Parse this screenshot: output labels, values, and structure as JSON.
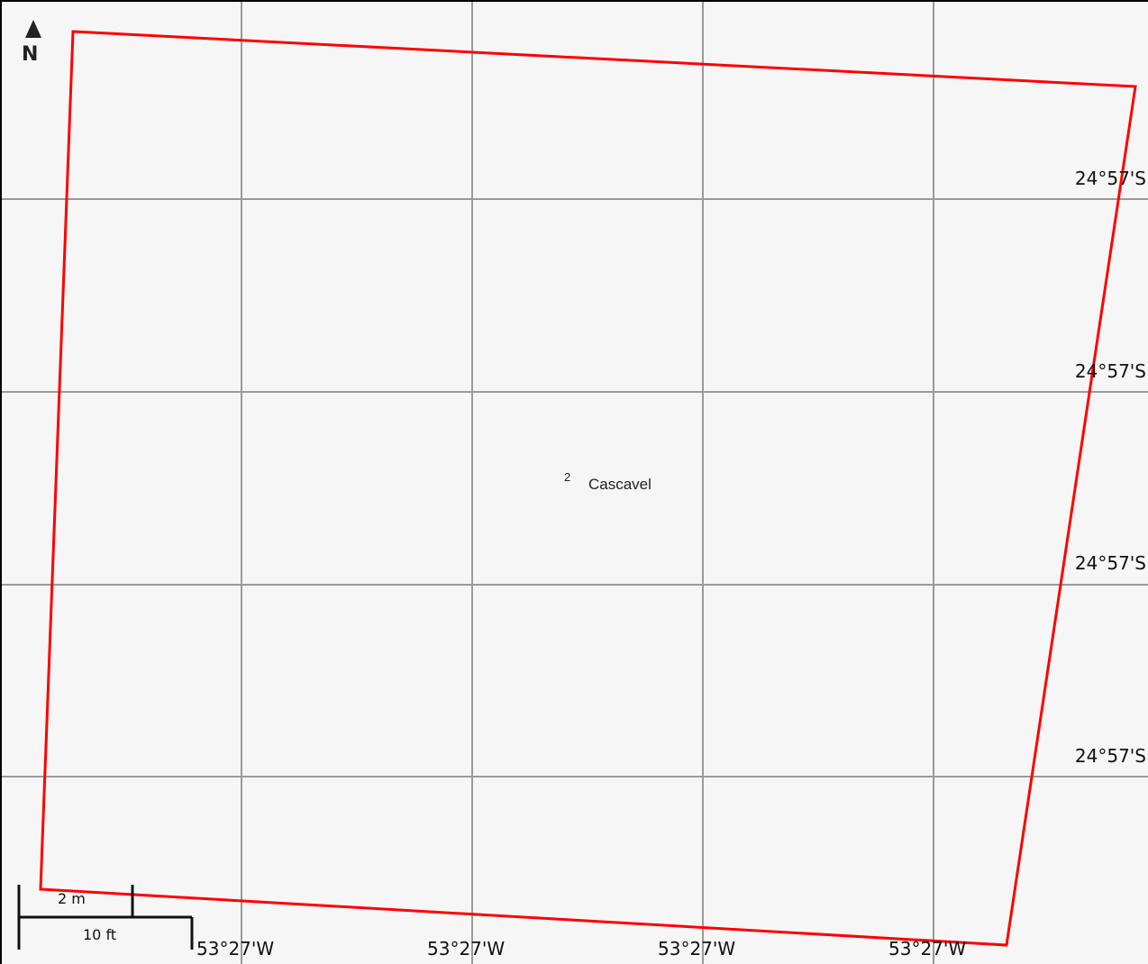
{
  "map": {
    "background": "#f6f6f6",
    "grid_color": "#9a9a9a",
    "boundary_color": "#ff0000"
  },
  "north_arrow": {
    "letter": "N"
  },
  "latitude_labels": [
    "24°57'S",
    "24°57'S",
    "24°57'S",
    "24°57'S"
  ],
  "longitude_labels": [
    "53°27'W",
    "53°27'W",
    "53°27'W",
    "53°27'W"
  ],
  "place": {
    "prefix": "2",
    "name": "Cascavel"
  },
  "scale_bar": {
    "metric_label": "2 m",
    "imperial_label": "10 ft"
  }
}
